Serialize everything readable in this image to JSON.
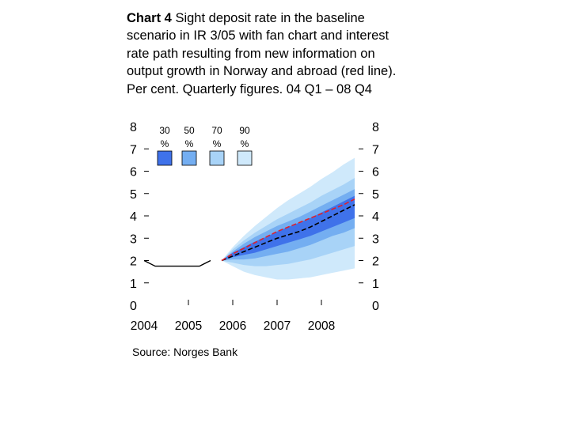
{
  "title": {
    "bold": "Chart 4",
    "text": " Sight deposit rate in the baseline scenario in IR 3/05 with fan chart and interest rate path resulting from new information on output growth in Norway and abroad (red line). Per cent. Quarterly figures. 04 Q1 – 08 Q4"
  },
  "source": "Source: Norges Bank",
  "colors": {
    "band_90": "#cfe9fb",
    "band_70": "#a8d3f7",
    "band_50": "#74aef1",
    "band_30": "#3f72ea",
    "baseline": "#000000",
    "red_path": "#e0202a"
  },
  "chart_data": {
    "type": "area",
    "title": "Chart 4 Sight deposit rate in the baseline scenario in IR 3/05 with fan chart and interest rate path resulting from new information on output growth in Norway and abroad (red line). Per cent. Quarterly figures. 04 Q1 – 08 Q4",
    "xlabel": "",
    "ylabel": "",
    "x_ticks": [
      "2004",
      "2005",
      "2006",
      "2007",
      "2008"
    ],
    "y_ticks": [
      0,
      1,
      2,
      3,
      4,
      5,
      6,
      7,
      8
    ],
    "ylim": [
      0,
      8
    ],
    "grid": false,
    "legend": [
      "30 %",
      "50 %",
      "70 %",
      "90 %"
    ],
    "legend_position": "top-left",
    "history": {
      "x": [
        2004.0,
        2004.25,
        2004.5,
        2004.75,
        2005.0,
        2005.25,
        2005.5
      ],
      "y": [
        2.0,
        1.75,
        1.75,
        1.75,
        1.75,
        1.75,
        2.0
      ]
    },
    "baseline": {
      "x": [
        2005.75,
        2006.0,
        2006.25,
        2006.5,
        2006.75,
        2007.0,
        2007.25,
        2007.5,
        2007.75,
        2008.0,
        2008.25,
        2008.5,
        2008.75
      ],
      "y": [
        2.0,
        2.2,
        2.4,
        2.6,
        2.8,
        3.0,
        3.15,
        3.3,
        3.5,
        3.75,
        4.0,
        4.25,
        4.5
      ]
    },
    "red_path": {
      "x": [
        2005.75,
        2006.0,
        2006.25,
        2006.5,
        2006.75,
        2007.0,
        2007.25,
        2007.5,
        2007.75,
        2008.0,
        2008.25,
        2008.5,
        2008.75
      ],
      "y": [
        2.0,
        2.3,
        2.55,
        2.8,
        3.05,
        3.3,
        3.5,
        3.7,
        3.9,
        4.1,
        4.3,
        4.5,
        4.75
      ]
    },
    "bands": [
      {
        "name": "90 %",
        "x": [
          2005.75,
          2006.0,
          2006.25,
          2006.5,
          2006.75,
          2007.0,
          2007.25,
          2007.5,
          2007.75,
          2008.0,
          2008.25,
          2008.5,
          2008.75
        ],
        "lower": [
          2.0,
          1.75,
          1.5,
          1.35,
          1.25,
          1.15,
          1.15,
          1.2,
          1.25,
          1.35,
          1.45,
          1.55,
          1.65
        ],
        "upper": [
          2.0,
          2.6,
          3.1,
          3.55,
          3.95,
          4.35,
          4.7,
          5.0,
          5.3,
          5.65,
          5.95,
          6.3,
          6.6
        ]
      },
      {
        "name": "70 %",
        "x": [
          2005.75,
          2006.0,
          2006.25,
          2006.5,
          2006.75,
          2007.0,
          2007.25,
          2007.5,
          2007.75,
          2008.0,
          2008.25,
          2008.5,
          2008.75
        ],
        "lower": [
          2.0,
          1.9,
          1.8,
          1.75,
          1.75,
          1.8,
          1.85,
          1.95,
          2.05,
          2.2,
          2.35,
          2.5,
          2.65
        ],
        "upper": [
          2.0,
          2.5,
          2.9,
          3.25,
          3.55,
          3.85,
          4.1,
          4.35,
          4.6,
          4.9,
          5.15,
          5.4,
          5.7
        ]
      },
      {
        "name": "50 %",
        "x": [
          2005.75,
          2006.0,
          2006.25,
          2006.5,
          2006.75,
          2007.0,
          2007.25,
          2007.5,
          2007.75,
          2008.0,
          2008.25,
          2008.5,
          2008.75
        ],
        "lower": [
          2.0,
          2.05,
          2.05,
          2.1,
          2.2,
          2.3,
          2.4,
          2.55,
          2.7,
          2.9,
          3.1,
          3.25,
          3.45
        ],
        "upper": [
          2.0,
          2.4,
          2.75,
          3.05,
          3.3,
          3.55,
          3.75,
          3.95,
          4.2,
          4.45,
          4.7,
          4.95,
          5.2
        ]
      },
      {
        "name": "30 %",
        "x": [
          2005.75,
          2006.0,
          2006.25,
          2006.5,
          2006.75,
          2007.0,
          2007.25,
          2007.5,
          2007.75,
          2008.0,
          2008.25,
          2008.5,
          2008.75
        ],
        "lower": [
          2.0,
          2.15,
          2.25,
          2.35,
          2.5,
          2.65,
          2.8,
          2.95,
          3.1,
          3.3,
          3.5,
          3.7,
          3.9
        ],
        "upper": [
          2.0,
          2.35,
          2.6,
          2.85,
          3.05,
          3.3,
          3.5,
          3.7,
          3.9,
          4.15,
          4.4,
          4.65,
          4.9
        ]
      }
    ]
  }
}
